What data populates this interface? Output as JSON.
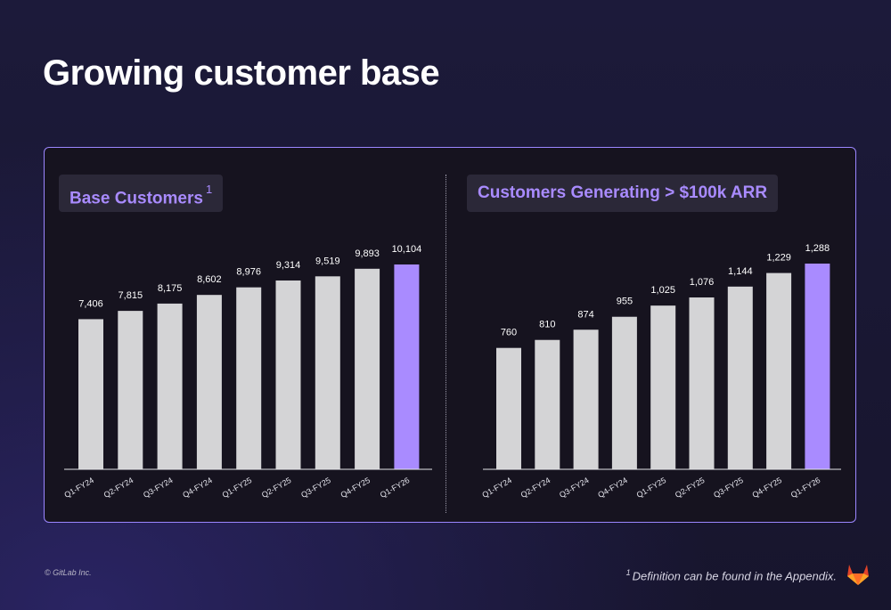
{
  "header": {
    "title": "Growing customer base"
  },
  "footer": {
    "copyright": "© GitLab Inc.",
    "footnote_marker": "1",
    "footnote_text": "Definition can be found in the Appendix."
  },
  "colors": {
    "highlight": "#a98bff",
    "bar": "#d4d4d6",
    "title_bg": "#2b2838"
  },
  "chart_data": [
    {
      "type": "bar",
      "title": "Base Customers",
      "title_footnote": "1",
      "categories": [
        "Q1-FY24",
        "Q2-FY24",
        "Q3-FY24",
        "Q4-FY24",
        "Q1-FY25",
        "Q2-FY25",
        "Q3-FY25",
        "Q4-FY25",
        "Q1-FY26"
      ],
      "values": [
        7406,
        7815,
        8175,
        8602,
        8976,
        9314,
        9519,
        9893,
        10104
      ],
      "value_labels": [
        "7,406",
        "7,815",
        "8,175",
        "8,602",
        "8,976",
        "9,314",
        "9,519",
        "9,893",
        "10,104"
      ],
      "highlight_index": 8,
      "ylim": [
        0,
        10104
      ],
      "grid": false
    },
    {
      "type": "bar",
      "title": "Customers Generating > $100k ARR",
      "categories": [
        "Q1-FY24",
        "Q2-FY24",
        "Q3-FY24",
        "Q4-FY24",
        "Q1-FY25",
        "Q2-FY25",
        "Q3-FY25",
        "Q4-FY25",
        "Q1-FY26"
      ],
      "values": [
        760,
        810,
        874,
        955,
        1025,
        1076,
        1144,
        1229,
        1288
      ],
      "value_labels": [
        "760",
        "810",
        "874",
        "955",
        "1,025",
        "1,076",
        "1,144",
        "1,229",
        "1,288"
      ],
      "highlight_index": 8,
      "ylim": [
        0,
        1288
      ],
      "grid": false
    }
  ]
}
